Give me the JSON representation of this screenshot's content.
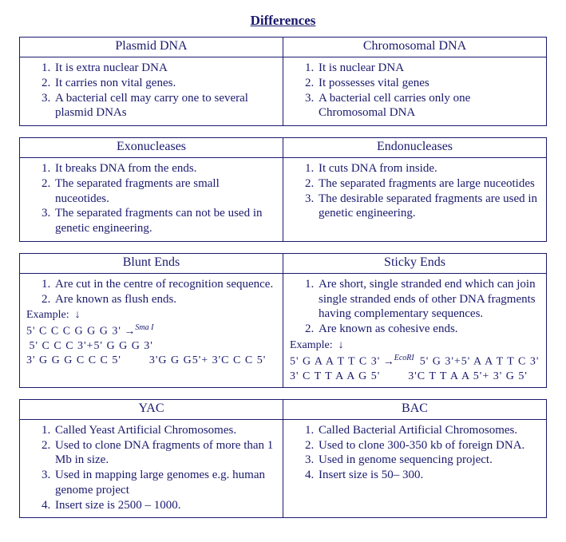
{
  "title": "Differences",
  "tables": [
    {
      "left": {
        "header": "Plasmid  DNA",
        "items": [
          "It is extra nuclear DNA",
          "It carries non vital genes.",
          "A bacterial cell may carry one to several plasmid DNAs"
        ]
      },
      "right": {
        "header": "Chromosomal DNA",
        "items": [
          "It is nuclear DNA",
          "It possesses vital genes",
          "A bacterial cell carries only one Chromosomal DNA"
        ]
      }
    },
    {
      "left": {
        "header": "Exonucleases",
        "items": [
          "It breaks DNA from the ends.",
          "The separated fragments are small nuceotides.",
          "The separated fragments can not be used in genetic engineering."
        ]
      },
      "right": {
        "header": "Endonucleases",
        "items": [
          "It cuts DNA from inside.",
          "The separated fragments are large nuceotides",
          "The desirable  separated fragments are used in genetic engineering."
        ]
      }
    },
    {
      "left": {
        "header": "Blunt Ends",
        "items": [
          "Are cut in the centre of recognition sequence.",
          "Are known as flush ends."
        ],
        "example_label": "Example:",
        "enzyme": "Sma I",
        "seq_top_left": "5' C C C G G G 3'",
        "seq_top_right": "5' C C C 3'+5' G G G 3'",
        "seq_bot_left": "3'  G G G C C C 5'",
        "seq_bot_right": "3'G G G5'+ 3'C C C 5'"
      },
      "right": {
        "header": "Sticky Ends",
        "items": [
          "Are short, single stranded end which can join single stranded ends of other DNA fragments having complementary sequences.",
          "Are known as cohesive ends."
        ],
        "example_label": "Example:",
        "enzyme": "EcoRI",
        "seq_top_left": "5' G A A T T C 3'",
        "seq_top_right": "5' G 3'+5'  A A T T C 3'",
        "seq_bot_left": "3'  C T T A A G  5'",
        "seq_bot_right": "3'C T T A A 5'+ 3' G  5'"
      }
    },
    {
      "left": {
        "header": "YAC",
        "items": [
          "Called Yeast Artificial Chromosomes.",
          "Used to clone DNA fragments of more than 1 Mb in size.",
          "Used in mapping large genomes e.g. human genome project",
          "Insert size is 2500 – 1000."
        ]
      },
      "right": {
        "header": "BAC",
        "items": [
          "Called Bacterial Artificial Chromosomes.",
          "Used to clone 300-350 kb of foreign DNA.",
          "Used in genome sequencing project.",
          "Insert size is 50– 300."
        ]
      }
    }
  ]
}
